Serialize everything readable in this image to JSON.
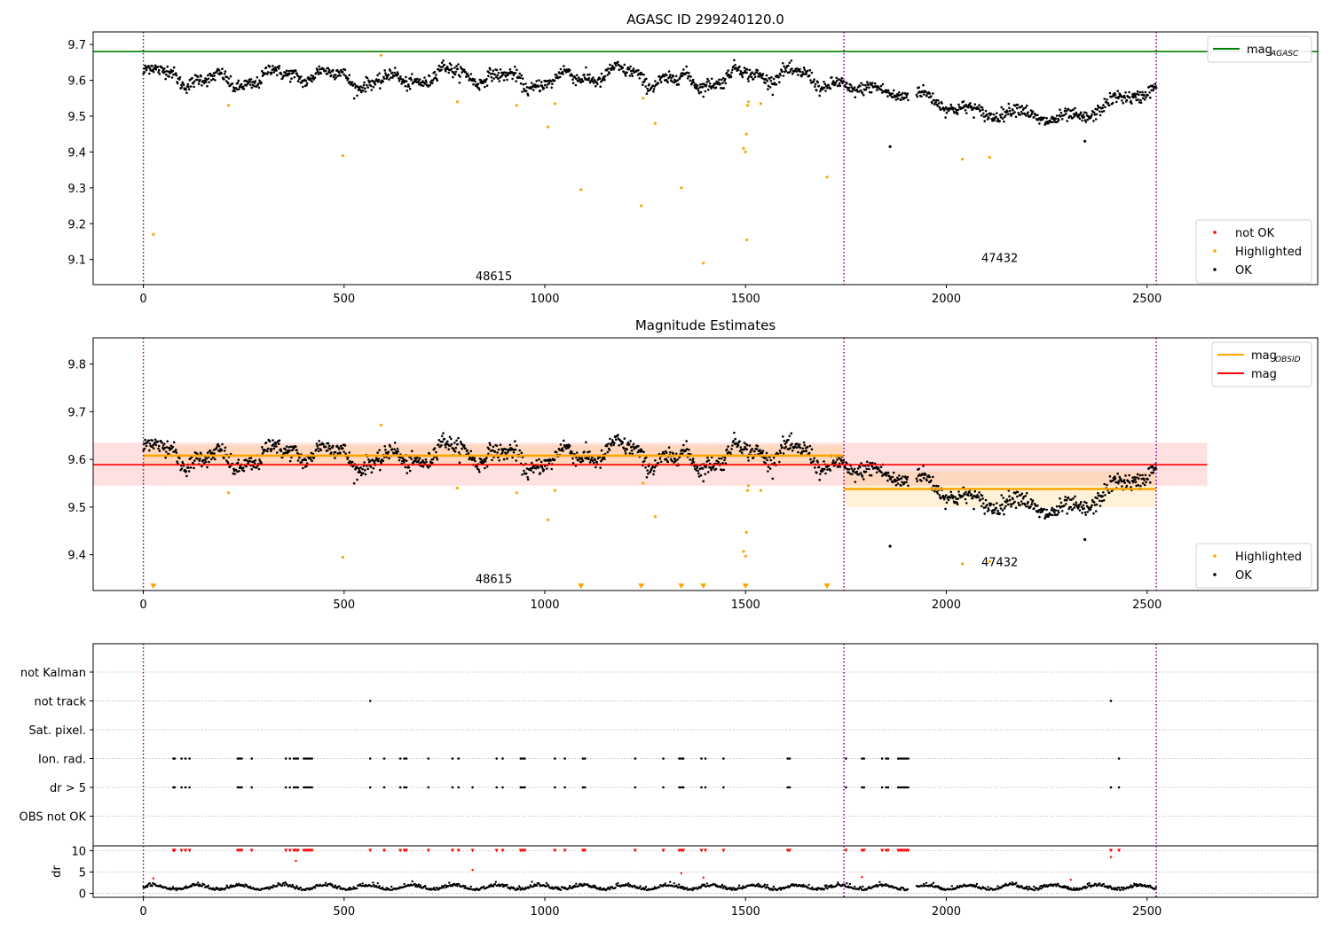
{
  "chart_data": [
    {
      "type": "scatter",
      "title": "AGASC ID 299240120.0",
      "xlim": [
        -125,
        2925
      ],
      "ylim": [
        9.03,
        9.735
      ],
      "xticks": [
        0,
        500,
        1000,
        1500,
        2000,
        2500
      ],
      "yticks": [
        9.1,
        9.2,
        9.3,
        9.4,
        9.5,
        9.6,
        9.7
      ],
      "vlines": [
        0,
        1745,
        2523
      ],
      "hline": {
        "name": "mag",
        "sub": "AGASC",
        "y": 9.68,
        "color": "#008000"
      },
      "obsids": [
        {
          "label": "48615",
          "x": 873,
          "y": 9.055
        },
        {
          "label": "47432",
          "x": 2133,
          "y": 9.105
        }
      ],
      "legend_top": [
        {
          "name": "mag",
          "sub": "AGASC",
          "color": "#008000",
          "kind": "line"
        }
      ],
      "legend_bottom": [
        {
          "name": "not OK",
          "color": "#ff0000",
          "kind": "dot"
        },
        {
          "name": "Highlighted",
          "color": "#ffa500",
          "kind": "dot"
        },
        {
          "name": "OK",
          "color": "#000000",
          "kind": "dot"
        }
      ],
      "highlighted": [
        [
          25,
          9.17
        ],
        [
          212,
          9.53
        ],
        [
          497,
          9.39
        ],
        [
          592,
          9.67
        ],
        [
          782,
          9.54
        ],
        [
          930,
          9.53
        ],
        [
          1008,
          9.47
        ],
        [
          1025,
          9.535
        ],
        [
          1090,
          9.295
        ],
        [
          1240,
          9.25
        ],
        [
          1245,
          9.55
        ],
        [
          1275,
          9.48
        ],
        [
          1340,
          9.3
        ],
        [
          1395,
          9.09
        ],
        [
          1495,
          9.41
        ],
        [
          1500,
          9.4
        ],
        [
          1502,
          9.45
        ],
        [
          1503,
          9.155
        ],
        [
          1505,
          9.53
        ],
        [
          1507,
          9.54
        ],
        [
          1538,
          9.535
        ],
        [
          1703,
          9.33
        ],
        [
          2040,
          9.38
        ],
        [
          2108,
          9.385
        ]
      ],
      "ok_outliers": [
        [
          1860,
          9.415
        ],
        [
          2345,
          9.43
        ]
      ]
    },
    {
      "type": "scatter",
      "title": "Magnitude Estimates",
      "xlim": [
        -125,
        2925
      ],
      "ylim": [
        9.325,
        9.855
      ],
      "xticks": [
        0,
        500,
        1000,
        1500,
        2000,
        2500
      ],
      "yticks": [
        9.4,
        9.5,
        9.6,
        9.7,
        9.8
      ],
      "vlines": [
        0,
        1745,
        2523
      ],
      "mag_line": {
        "y": 9.589,
        "band": [
          9.545,
          9.635
        ],
        "x": [
          -125,
          2650
        ],
        "color": "#ff0000"
      },
      "obsid_segments": [
        {
          "x": [
            0,
            1745
          ],
          "y": 9.608,
          "band": [
            9.585,
            9.63
          ]
        },
        {
          "x": [
            1745,
            2523
          ],
          "y": 9.538,
          "band": [
            9.5,
            9.575
          ]
        }
      ],
      "obsids": [
        {
          "label": "48615",
          "x": 873,
          "y": 9.35
        },
        {
          "label": "47432",
          "x": 2133,
          "y": 9.385
        }
      ],
      "legend_top": [
        {
          "name": "mag",
          "sub": "OBSID",
          "color": "#ffa500",
          "kind": "line"
        },
        {
          "name": "mag",
          "sub": "",
          "color": "#ff0000",
          "kind": "line"
        }
      ],
      "legend_bottom": [
        {
          "name": "Highlighted",
          "color": "#ffa500",
          "kind": "dot"
        },
        {
          "name": "OK",
          "color": "#000000",
          "kind": "dot"
        }
      ],
      "highlighted": [
        [
          212,
          9.53
        ],
        [
          497,
          9.395
        ],
        [
          592,
          9.672
        ],
        [
          782,
          9.54
        ],
        [
          930,
          9.53
        ],
        [
          1008,
          9.473
        ],
        [
          1025,
          9.535
        ],
        [
          1245,
          9.55
        ],
        [
          1275,
          9.48
        ],
        [
          1495,
          9.407
        ],
        [
          1500,
          9.397
        ],
        [
          1502,
          9.447
        ],
        [
          1505,
          9.535
        ],
        [
          1507,
          9.545
        ],
        [
          1538,
          9.535
        ],
        [
          2040,
          9.381
        ],
        [
          2108,
          9.386
        ]
      ],
      "triangles": [
        25,
        1090,
        1240,
        1340,
        1395,
        1500,
        1703
      ],
      "ok_outliers": [
        [
          1860,
          9.418
        ],
        [
          2345,
          9.432
        ]
      ]
    },
    {
      "type": "scatter",
      "title": "",
      "xlim": [
        -125,
        2925
      ],
      "xticks": [
        0,
        500,
        1000,
        1500,
        2000,
        2500
      ],
      "vlines": [
        0,
        1745,
        2523
      ],
      "flag_rows": [
        "not Kalman",
        "not track",
        "Sat. pixel.",
        "Ion. rad.",
        "dr > 5",
        "OBS not OK"
      ],
      "flags": {
        "not track": [
          565,
          2410
        ],
        "Ion. rad.": [
          75,
          78,
          95,
          105,
          115,
          235,
          240,
          245,
          270,
          355,
          365,
          375,
          380,
          385,
          400,
          405,
          410,
          415,
          420,
          565,
          600,
          640,
          650,
          655,
          710,
          770,
          785,
          880,
          895,
          940,
          945,
          950,
          1025,
          1050,
          1095,
          1100,
          1225,
          1295,
          1335,
          1340,
          1345,
          1390,
          1400,
          1445,
          1605,
          1610,
          1750,
          1790,
          1795,
          1840,
          1850,
          1855,
          1880,
          1885,
          1890,
          1895,
          1900,
          1905,
          2430
        ],
        "dr > 5": [
          75,
          78,
          95,
          105,
          115,
          235,
          240,
          245,
          270,
          355,
          365,
          375,
          380,
          385,
          400,
          405,
          410,
          415,
          420,
          565,
          600,
          640,
          650,
          655,
          710,
          770,
          785,
          820,
          880,
          895,
          940,
          945,
          950,
          1025,
          1050,
          1095,
          1100,
          1225,
          1295,
          1335,
          1340,
          1345,
          1390,
          1400,
          1445,
          1605,
          1610,
          1750,
          1790,
          1795,
          1840,
          1850,
          1855,
          1880,
          1885,
          1890,
          1895,
          1900,
          1905,
          2410,
          2430
        ]
      },
      "dr_ylabel": "dr",
      "dr_yticks": [
        0,
        5,
        10
      ],
      "dr_ylim": [
        -0.3,
        10.5
      ],
      "dr_red": [
        [
          25,
          3.5
        ],
        [
          380,
          7.6
        ],
        [
          820,
          5.5
        ],
        [
          1340,
          4.7
        ],
        [
          1395,
          3.7
        ],
        [
          1790,
          3.8
        ],
        [
          2310,
          3.2
        ],
        [
          2410,
          8.5
        ]
      ]
    }
  ]
}
